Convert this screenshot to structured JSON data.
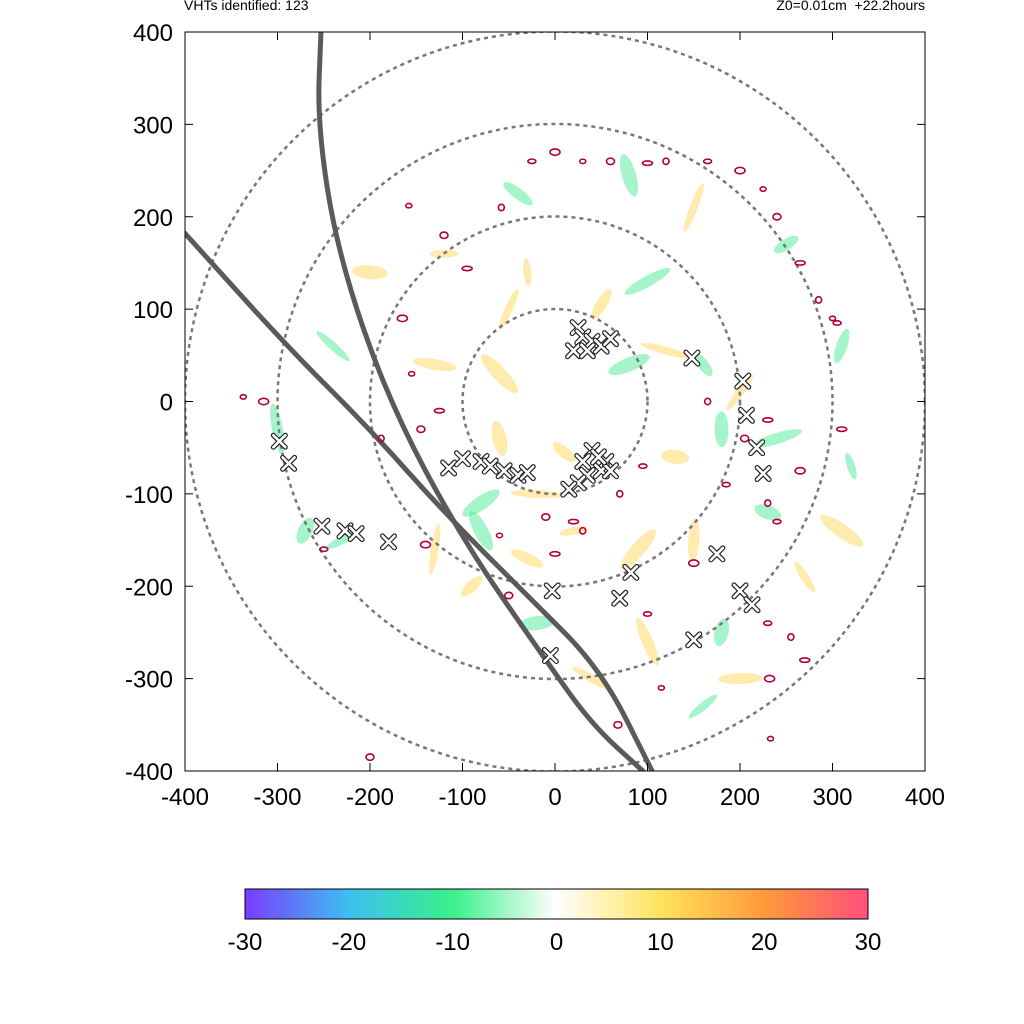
{
  "header": {
    "left_text": "VHTs identified: 123",
    "right_text": "Z0=0.01cm  +22.2hours"
  },
  "colors": {
    "ring": "#777777",
    "track": "#5a5a5a",
    "contour": "#b0003a",
    "marker_fill": "#ffffff",
    "marker_stroke": "#222222"
  },
  "chart_data": {
    "type": "scatter",
    "title": "",
    "xlabel": "",
    "ylabel": "",
    "xlim": [
      -400,
      400
    ],
    "ylim": [
      -400,
      400
    ],
    "xticks": [
      -400,
      -300,
      -200,
      -100,
      0,
      100,
      200,
      300,
      400
    ],
    "yticks": [
      -400,
      -300,
      -200,
      -100,
      0,
      100,
      200,
      300,
      400
    ],
    "x_tick_labels": [
      "-400",
      "-300",
      "-200",
      "-100",
      "0",
      "100",
      "200",
      "300",
      "400"
    ],
    "y_tick_labels": [
      "-400",
      "-300",
      "-200",
      "-100",
      "0",
      "100",
      "200",
      "300",
      "400"
    ],
    "grid": false,
    "range_rings": [
      100,
      200,
      300,
      400
    ],
    "tracks": [
      {
        "points": [
          [
            -400,
            182
          ],
          [
            -290,
            60
          ],
          [
            -200,
            -30
          ],
          [
            -120,
            -120
          ],
          [
            -30,
            -210
          ],
          [
            50,
            -290
          ],
          [
            105,
            -400
          ]
        ]
      },
      {
        "points": [
          [
            -253,
            400
          ],
          [
            -257,
            300
          ],
          [
            -235,
            160
          ],
          [
            -180,
            0
          ],
          [
            -100,
            -150
          ],
          [
            -10,
            -280
          ],
          [
            40,
            -350
          ],
          [
            95,
            -400
          ]
        ]
      }
    ],
    "vht_count": 123,
    "vht_markers": [
      [
        25,
        80
      ],
      [
        30,
        70
      ],
      [
        40,
        65
      ],
      [
        50,
        60
      ],
      [
        60,
        68
      ],
      [
        20,
        55
      ],
      [
        35,
        55
      ],
      [
        148,
        47
      ],
      [
        203,
        22
      ],
      [
        207,
        -15
      ],
      [
        218,
        -50
      ],
      [
        225,
        -78
      ],
      [
        -298,
        -43
      ],
      [
        -288,
        -67
      ],
      [
        -252,
        -135
      ],
      [
        -227,
        -140
      ],
      [
        -215,
        -143
      ],
      [
        -180,
        -152
      ],
      [
        -115,
        -72
      ],
      [
        -100,
        -62
      ],
      [
        -80,
        -65
      ],
      [
        -70,
        -70
      ],
      [
        -55,
        -75
      ],
      [
        -40,
        -80
      ],
      [
        -30,
        -77
      ],
      [
        40,
        -53
      ],
      [
        55,
        -65
      ],
      [
        50,
        -75
      ],
      [
        60,
        -75
      ],
      [
        35,
        -80
      ],
      [
        25,
        -88
      ],
      [
        15,
        -95
      ],
      [
        47,
        -60
      ],
      [
        30,
        -65
      ],
      [
        -3,
        -205
      ],
      [
        70,
        -213
      ],
      [
        82,
        -185
      ],
      [
        175,
        -165
      ],
      [
        200,
        -205
      ],
      [
        213,
        -220
      ],
      [
        150,
        -258
      ],
      [
        -5,
        -275
      ]
    ],
    "contour_blobs": [
      [
        -158,
        212
      ],
      [
        -120,
        180
      ],
      [
        -95,
        144
      ],
      [
        -58,
        210
      ],
      [
        -25,
        260
      ],
      [
        0,
        270
      ],
      [
        30,
        260
      ],
      [
        60,
        260
      ],
      [
        100,
        258
      ],
      [
        120,
        260
      ],
      [
        165,
        260
      ],
      [
        200,
        250
      ],
      [
        225,
        230
      ],
      [
        240,
        200
      ],
      [
        265,
        150
      ],
      [
        285,
        110
      ],
      [
        305,
        85
      ],
      [
        -165,
        90
      ],
      [
        -155,
        30
      ],
      [
        -145,
        -30
      ],
      [
        -125,
        -10
      ],
      [
        -188,
        -40
      ],
      [
        -250,
        -160
      ],
      [
        -315,
        0
      ],
      [
        -337,
        5
      ],
      [
        -200,
        -385
      ],
      [
        270,
        -280
      ],
      [
        255,
        -255
      ],
      [
        230,
        -240
      ],
      [
        232,
        -300
      ],
      [
        233,
        -365
      ],
      [
        205,
        -40
      ],
      [
        230,
        -20
      ],
      [
        230,
        -110
      ],
      [
        240,
        -130
      ],
      [
        265,
        -75
      ],
      [
        300,
        90
      ],
      [
        -50,
        -210
      ],
      [
        0,
        -165
      ],
      [
        30,
        -140
      ],
      [
        100,
        -230
      ],
      [
        150,
        -175
      ],
      [
        115,
        -310
      ],
      [
        68,
        -350
      ],
      [
        310,
        -30
      ],
      [
        165,
        0
      ],
      [
        185,
        -90
      ],
      [
        -140,
        -155
      ],
      [
        -60,
        -145
      ],
      [
        -10,
        -125
      ],
      [
        20,
        -130
      ],
      [
        70,
        -100
      ],
      [
        95,
        -70
      ]
    ],
    "field_blobs": [
      [
        -120,
        160,
        1
      ],
      [
        -40,
        225,
        -1
      ],
      [
        80,
        245,
        -1
      ],
      [
        150,
        210,
        1
      ],
      [
        250,
        170,
        -1
      ],
      [
        -200,
        140,
        1
      ],
      [
        -240,
        60,
        -1
      ],
      [
        -300,
        -30,
        -1
      ],
      [
        -270,
        -140,
        -1
      ],
      [
        -230,
        -150,
        -1
      ],
      [
        -130,
        40,
        1
      ],
      [
        -60,
        30,
        1
      ],
      [
        -30,
        140,
        1
      ],
      [
        50,
        105,
        1
      ],
      [
        80,
        40,
        -1
      ],
      [
        120,
        55,
        1
      ],
      [
        160,
        40,
        -1
      ],
      [
        180,
        -30,
        -1
      ],
      [
        200,
        10,
        1
      ],
      [
        240,
        -40,
        -1
      ],
      [
        230,
        -120,
        -1
      ],
      [
        270,
        -190,
        1
      ],
      [
        150,
        -150,
        1
      ],
      [
        90,
        -160,
        1
      ],
      [
        20,
        -140,
        1
      ],
      [
        -30,
        -170,
        1
      ],
      [
        -80,
        -140,
        -1
      ],
      [
        -130,
        -160,
        1
      ],
      [
        -90,
        -200,
        1
      ],
      [
        -20,
        -240,
        -1
      ],
      [
        40,
        -300,
        1
      ],
      [
        100,
        -260,
        1
      ],
      [
        180,
        -250,
        -1
      ],
      [
        160,
        -330,
        -1
      ],
      [
        200,
        -300,
        1
      ],
      [
        310,
        -140,
        1
      ],
      [
        320,
        -70,
        -1
      ],
      [
        310,
        60,
        -1
      ],
      [
        -80,
        -110,
        -1
      ],
      [
        -20,
        -100,
        1
      ],
      [
        10,
        -55,
        1
      ],
      [
        -60,
        -40,
        1
      ],
      [
        -50,
        100,
        1
      ],
      [
        100,
        130,
        -1
      ],
      [
        130,
        -60,
        1
      ]
    ]
  },
  "colorbar": {
    "min": -30,
    "max": 30,
    "ticks": [
      "-30",
      "-20",
      "-10",
      "0",
      "10",
      "20",
      "30"
    ],
    "stops": [
      "#7b3cff",
      "#3bc0f0",
      "#3af08a",
      "#ffffff",
      "#ffe35c",
      "#ff9a3a",
      "#ff4f7b"
    ]
  }
}
